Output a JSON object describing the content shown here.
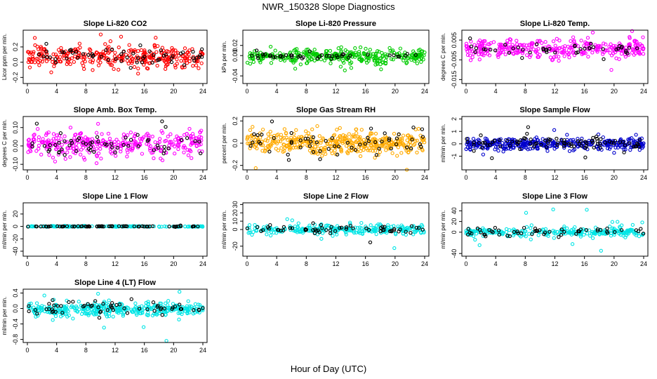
{
  "figure": {
    "title": "NWR_150328  Slope Diagnostics",
    "xlabel": "Hour of Day (UTC)"
  },
  "chart_data": [
    {
      "type": "scatter",
      "title": "Slope Li-820 CO2",
      "ylabel": "Licor ppm per min.",
      "xlim": [
        0,
        24
      ],
      "ylim": [
        -0.28,
        0.42
      ],
      "yticks": [
        {
          "v": -0.2,
          "l": "-0.2"
        },
        {
          "v": 0.0,
          "l": "0.0"
        },
        {
          "v": 0.2,
          "l": "0.2"
        }
      ],
      "xticks": [
        0,
        4,
        8,
        12,
        16,
        20,
        24
      ],
      "color": "#ff0000",
      "grey_mid": 0.08,
      "grey_spread": 0.09,
      "grey_n": 60,
      "col_mid": 0.07,
      "col_spread": 0.12,
      "col_n": 340
    },
    {
      "type": "scatter",
      "title": "Slope Li-820 Pressure",
      "ylabel": "kPa per min.",
      "xlim": [
        0,
        24
      ],
      "ylim": [
        -0.055,
        0.05
      ],
      "yticks": [
        {
          "v": -0.04,
          "l": "-0.04"
        },
        {
          "v": 0.0,
          "l": "0.00"
        },
        {
          "v": 0.02,
          "l": "0.02"
        }
      ],
      "xticks": [
        0,
        4,
        8,
        12,
        16,
        20,
        24
      ],
      "color": "#00cc00",
      "grey_mid": -0.002,
      "grey_spread": 0.006,
      "grey_n": 45,
      "col_mid": -0.002,
      "col_spread": 0.012,
      "col_n": 340
    },
    {
      "type": "scatter",
      "title": "Slope Li-820 Temp.",
      "ylabel": "degrees C per min.",
      "xlim": [
        0,
        24
      ],
      "ylim": [
        -0.017,
        0.01
      ],
      "yticks": [
        {
          "v": -0.015,
          "l": "-0.015"
        },
        {
          "v": -0.005,
          "l": "-0.005"
        },
        {
          "v": 0.005,
          "l": "0.005"
        }
      ],
      "xticks": [
        0,
        4,
        8,
        12,
        16,
        20,
        24
      ],
      "color": "#ff00ff",
      "grey_mid": 0.0,
      "grey_spread": 0.003,
      "grey_n": 45,
      "col_mid": 0.0005,
      "col_spread": 0.0045,
      "col_n": 340
    },
    {
      "type": "scatter",
      "title": "Slope Amb. Box Temp.",
      "ylabel": "degrees C per min.",
      "xlim": [
        0,
        24
      ],
      "ylim": [
        -0.13,
        0.16
      ],
      "yticks": [
        {
          "v": -0.1,
          "l": "-0.10"
        },
        {
          "v": 0.0,
          "l": "0.00"
        },
        {
          "v": 0.1,
          "l": "0.10"
        }
      ],
      "xticks": [
        0,
        4,
        8,
        12,
        16,
        20,
        24
      ],
      "color": "#ff00ff",
      "grey_mid": 0.01,
      "grey_spread": 0.05,
      "grey_n": 60,
      "col_mid": 0.01,
      "col_spread": 0.06,
      "col_n": 340
    },
    {
      "type": "scatter",
      "title": "Slope Gas Stream RH",
      "ylabel": "percent per min.",
      "xlim": [
        0,
        24
      ],
      "ylim": [
        -0.24,
        0.24
      ],
      "yticks": [
        {
          "v": -0.2,
          "l": "-0.2"
        },
        {
          "v": 0.0,
          "l": "0.0"
        },
        {
          "v": 0.2,
          "l": "0.2"
        }
      ],
      "xticks": [
        0,
        4,
        8,
        12,
        16,
        20,
        24
      ],
      "color": "#ffaa00",
      "grey_mid": 0.0,
      "grey_spread": 0.09,
      "grey_n": 60,
      "col_mid": 0.0,
      "col_spread": 0.09,
      "col_n": 420
    },
    {
      "type": "scatter",
      "title": "Slope Sample Flow",
      "ylabel": "ml/min per min.",
      "xlim": [
        0,
        24
      ],
      "ylim": [
        -2.1,
        2.2
      ],
      "yticks": [
        {
          "v": -1,
          "l": "-1"
        },
        {
          "v": 0,
          "l": "0"
        },
        {
          "v": 1,
          "l": "1"
        },
        {
          "v": 2,
          "l": "2"
        }
      ],
      "xticks": [
        0,
        4,
        8,
        12,
        16,
        20,
        24
      ],
      "color": "#0000cc",
      "grey_mid": 0.05,
      "grey_spread": 0.4,
      "grey_n": 90,
      "col_mid": 0.0,
      "col_spread": 0.4,
      "col_n": 380
    },
    {
      "type": "scatter",
      "title": "Slope Line 1 Flow",
      "ylabel": "ml/min per min.",
      "xlim": [
        0,
        24
      ],
      "ylim": [
        -48,
        38
      ],
      "yticks": [
        {
          "v": -40,
          "l": "-40"
        },
        {
          "v": -20,
          "l": "-20"
        },
        {
          "v": 0,
          "l": "0"
        },
        {
          "v": 20,
          "l": "20"
        }
      ],
      "xticks": [
        0,
        4,
        8,
        12,
        16,
        20,
        24
      ],
      "color": "#00e5e5",
      "grey_mid": 0.0,
      "grey_spread": 0.4,
      "grey_n": 70,
      "col_mid": 0.0,
      "col_spread": 0.6,
      "col_n": 150
    },
    {
      "type": "scatter",
      "title": "Slope Line 2 Flow",
      "ylabel": "ml/min per min.",
      "xlim": [
        0,
        24
      ],
      "ylim": [
        -32,
        32
      ],
      "yticks": [
        {
          "v": -20,
          "l": "-20"
        },
        {
          "v": 0,
          "l": "0"
        },
        {
          "v": 10,
          "l": "10"
        },
        {
          "v": 20,
          "l": "20"
        },
        {
          "v": 30,
          "l": "30"
        }
      ],
      "xticks": [
        0,
        4,
        8,
        12,
        16,
        20,
        24
      ],
      "color": "#00e5e5",
      "grey_mid": 0.0,
      "grey_spread": 4,
      "grey_n": 60,
      "col_mid": 0.0,
      "col_spread": 5,
      "col_n": 260
    },
    {
      "type": "scatter",
      "title": "Slope Line 3 Flow",
      "ylabel": "ml/min per min.",
      "xlim": [
        0,
        24
      ],
      "ylim": [
        -45,
        55
      ],
      "yticks": [
        {
          "v": -40,
          "l": "-40"
        },
        {
          "v": 0,
          "l": "0"
        },
        {
          "v": 20,
          "l": "20"
        },
        {
          "v": 40,
          "l": "40"
        }
      ],
      "xticks": [
        0,
        4,
        8,
        12,
        16,
        20,
        24
      ],
      "color": "#00e5e5",
      "grey_mid": 0.0,
      "grey_spread": 6,
      "grey_n": 55,
      "col_mid": 0.0,
      "col_spread": 7,
      "col_n": 260
    },
    {
      "type": "scatter",
      "title": "Slope Line 4 (LT) Flow",
      "ylabel": "ml/min per min.",
      "xlim": [
        0,
        24
      ],
      "ylim": [
        -0.88,
        0.5
      ],
      "yticks": [
        {
          "v": -0.8,
          "l": "-0.8"
        },
        {
          "v": -0.4,
          "l": "-0.4"
        },
        {
          "v": 0.0,
          "l": "0.0"
        },
        {
          "v": 0.4,
          "l": "0.4"
        }
      ],
      "xticks": [
        0,
        4,
        8,
        12,
        16,
        20,
        24
      ],
      "color": "#00e5e5",
      "grey_mid": 0.0,
      "grey_spread": 0.15,
      "grey_n": 60,
      "col_mid": -0.02,
      "col_spread": 0.16,
      "col_n": 380
    }
  ]
}
